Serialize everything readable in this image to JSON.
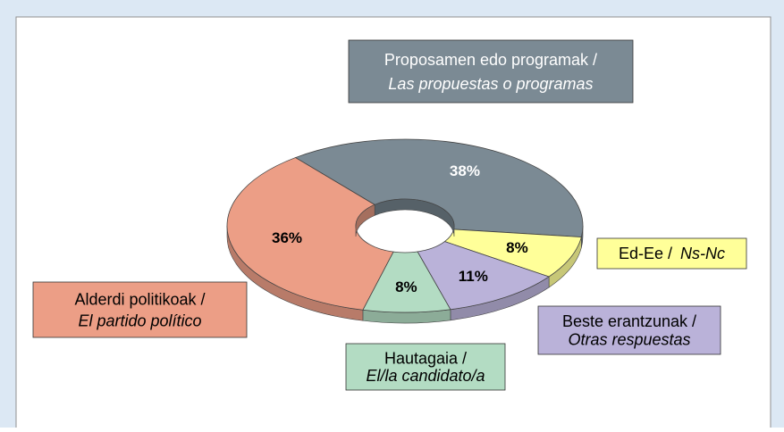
{
  "chart_data": {
    "type": "donut3d",
    "categories": [
      [
        "Proposamen edo programak /",
        "Las propuestas o programas"
      ],
      [
        "Ed-Ee / ",
        "Ns-Nc"
      ],
      [
        "Beste erantzunak /",
        "Otras respuestas"
      ],
      [
        "Hautagaia /",
        "El/la candidato/a"
      ],
      [
        "Alderdi politikoak /",
        "El partido político"
      ]
    ],
    "values": [
      38,
      8,
      11,
      8,
      36
    ],
    "value_labels": [
      "38%",
      "8%",
      "11%",
      "8%",
      "36%"
    ],
    "colors": [
      "#7b8a94",
      "#ffff99",
      "#bab2d9",
      "#b3dcc3",
      "#ec9e86"
    ]
  }
}
